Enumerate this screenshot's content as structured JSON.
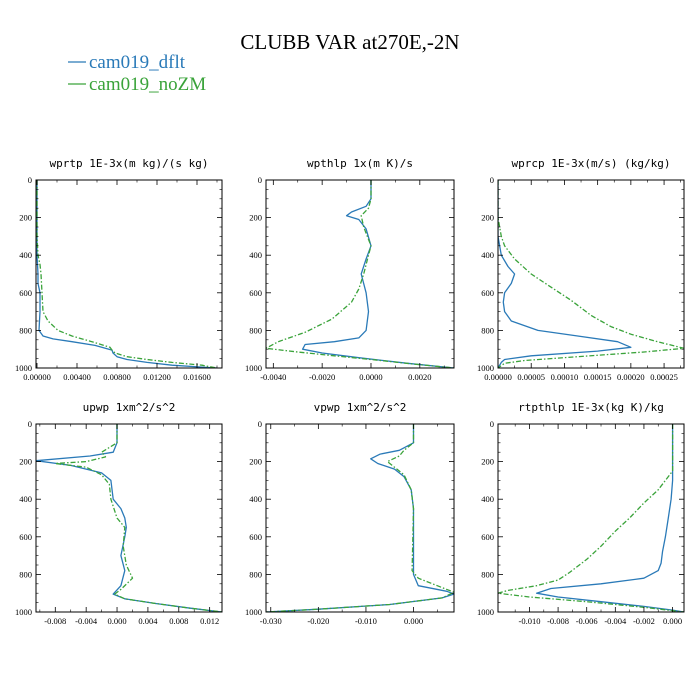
{
  "title": "CLUBB VAR at270E,-2N",
  "legend": [
    {
      "name": "cam019_dflt",
      "color": "#2a7ab8",
      "dash": "solid"
    },
    {
      "name": "cam019_noZM",
      "color": "#3aa33a",
      "dash": "dashed"
    }
  ],
  "chart_data": [
    {
      "type": "line",
      "title": "wprtp  1E-3x(m kg)/(s kg)",
      "xlim": [
        -0.0001,
        0.0185
      ],
      "ylim": [
        0,
        1000
      ],
      "y_inverted": true,
      "xticks": [
        0,
        0.004,
        0.008,
        0.012,
        0.016
      ],
      "xticklabels": [
        "0.00000",
        "0.00400",
        "0.00800",
        "0.01200",
        "0.01600"
      ],
      "yticks": [
        0,
        200,
        400,
        600,
        800,
        1000
      ],
      "series": [
        {
          "name": "cam019_dflt",
          "x": [
            0,
            0,
            0,
            0.0001,
            0.0001,
            0.0003,
            0.0003,
            0.0002,
            0.0006,
            0.0016,
            0.0035,
            0.0058,
            0.0075,
            0.0076,
            0.008,
            0.009,
            0.011,
            0.0135,
            0.0165,
            0.018
          ],
          "y": [
            0,
            300,
            400,
            500,
            550,
            600,
            700,
            800,
            830,
            845,
            860,
            880,
            905,
            920,
            940,
            955,
            970,
            985,
            995,
            1000
          ]
        },
        {
          "name": "cam019_noZM",
          "x": [
            0,
            0,
            0.0001,
            0.0003,
            0.0004,
            0.0005,
            0.0006,
            0.0011,
            0.0021,
            0.0035,
            0.0055,
            0.0073,
            0.0075,
            0.0078,
            0.009,
            0.011,
            0.0135,
            0.0165,
            0.018
          ],
          "y": [
            0,
            300,
            400,
            450,
            500,
            600,
            700,
            750,
            800,
            830,
            860,
            890,
            905,
            920,
            940,
            955,
            970,
            985,
            1000
          ]
        }
      ]
    },
    {
      "type": "line",
      "title": "wpthlp  1x(m K)/s",
      "xlim": [
        -0.0043,
        0.0034
      ],
      "ylim": [
        0,
        1000
      ],
      "y_inverted": true,
      "xticks": [
        -0.004,
        -0.002,
        0,
        0.002
      ],
      "xticklabels": [
        "-0.0040",
        "-0.0020",
        "0.0000",
        "0.0020"
      ],
      "yticks": [
        0,
        200,
        400,
        600,
        800,
        1000
      ],
      "series": [
        {
          "name": "cam019_dflt",
          "x": [
            0,
            0,
            -0.0002,
            -0.0008,
            -0.001,
            -0.0005,
            -0.0002,
            0,
            -0.0002,
            -0.0004,
            -0.0002,
            -0.0001,
            -0.0002,
            -0.0005,
            -0.0015,
            -0.0027,
            -0.0028,
            -0.002,
            -0.0005,
            0.0015,
            0.0034
          ],
          "y": [
            0,
            100,
            140,
            170,
            190,
            210,
            260,
            350,
            420,
            500,
            600,
            700,
            800,
            840,
            860,
            875,
            900,
            920,
            945,
            975,
            1000
          ]
        },
        {
          "name": "cam019_noZM",
          "x": [
            0,
            0,
            -0.0001,
            -0.0004,
            -0.0003,
            0,
            -0.0001,
            -0.0003,
            -0.0005,
            -0.0008,
            -0.0016,
            -0.0027,
            -0.0038,
            -0.0043,
            -0.003,
            -0.0015,
            0,
            0.0018,
            0.0034
          ],
          "y": [
            0,
            100,
            150,
            190,
            250,
            350,
            400,
            500,
            580,
            650,
            740,
            810,
            860,
            895,
            915,
            935,
            955,
            980,
            1000
          ]
        }
      ]
    },
    {
      "type": "line",
      "title": "wprcp  1E-3x(m/s) (kg/kg)",
      "xlim": [
        0,
        0.00028
      ],
      "ylim": [
        0,
        1000
      ],
      "y_inverted": true,
      "xticks": [
        0,
        5e-05,
        0.0001,
        0.00015,
        0.0002,
        0.00025
      ],
      "xticklabels": [
        "0.00000",
        "0.00005",
        "0.00010",
        "0.00015",
        "0.00020",
        "0.00025"
      ],
      "yticks": [
        0,
        200,
        400,
        600,
        800,
        1000
      ],
      "series": [
        {
          "name": "cam019_dflt",
          "x": [
            0,
            0,
            5e-06,
            1.5e-05,
            2.5e-05,
            2e-05,
            1e-05,
            8e-06,
            1e-05,
            2e-05,
            6e-05,
            0.00012,
            0.00018,
            0.0002,
            0.00015,
            5e-05,
            1e-05,
            5e-06,
            0
          ],
          "y": [
            0,
            300,
            400,
            460,
            500,
            550,
            600,
            650,
            700,
            750,
            800,
            830,
            860,
            890,
            910,
            935,
            955,
            970,
            1000
          ]
        },
        {
          "name": "cam019_noZM",
          "x": [
            0,
            0,
            5e-06,
            1e-05,
            2.5e-05,
            5e-05,
            8e-05,
            0.00011,
            0.00014,
            0.00017,
            0.0002,
            0.00024,
            0.00028,
            0.00022,
            0.00012,
            4e-05,
            1e-05,
            0
          ],
          "y": [
            0,
            200,
            300,
            350,
            420,
            500,
            570,
            640,
            720,
            780,
            820,
            860,
            895,
            915,
            940,
            960,
            975,
            1000
          ]
        }
      ]
    },
    {
      "type": "line",
      "title": "upwp  1xm^2/s^2",
      "xlim": [
        -0.0105,
        0.0136
      ],
      "ylim": [
        0,
        1000
      ],
      "y_inverted": true,
      "xticks": [
        -0.008,
        -0.004,
        0,
        0.004,
        0.008,
        0.012
      ],
      "xticklabels": [
        "-0.008",
        "-0.004",
        "0.000",
        "0.004",
        "0.008",
        "0.012"
      ],
      "yticks": [
        0,
        200,
        400,
        600,
        800,
        1000
      ],
      "series": [
        {
          "name": "cam019_dflt",
          "x": [
            0,
            0,
            -0.0005,
            -0.0035,
            -0.0105,
            -0.006,
            -0.002,
            -0.0008,
            -0.0005,
            0.0005,
            0.001,
            0.0012,
            0.001,
            0.0005,
            0.001,
            0.0005,
            -0.0005,
            0.001,
            0.005,
            0.0095,
            0.0136
          ],
          "y": [
            0,
            100,
            150,
            170,
            195,
            220,
            260,
            300,
            400,
            450,
            500,
            550,
            600,
            700,
            780,
            860,
            905,
            930,
            955,
            980,
            1000
          ]
        },
        {
          "name": "cam019_noZM",
          "x": [
            0,
            0,
            -0.002,
            -0.0015,
            -0.004,
            -0.008,
            -0.004,
            -0.002,
            -0.001,
            -0.0008,
            0,
            0.001,
            0.0008,
            0.0012,
            0.002,
            0.0005,
            -0.0003,
            0.001,
            0.005,
            0.0095,
            0.0136
          ],
          "y": [
            0,
            100,
            150,
            175,
            200,
            210,
            230,
            270,
            320,
            400,
            500,
            550,
            650,
            750,
            820,
            880,
            905,
            930,
            955,
            980,
            1000
          ]
        }
      ]
    },
    {
      "type": "line",
      "title": "vpwp  1xm^2/s^2",
      "xlim": [
        -0.031,
        0.0085
      ],
      "ylim": [
        0,
        1000
      ],
      "y_inverted": true,
      "xticks": [
        -0.03,
        -0.02,
        -0.01,
        0
      ],
      "xticklabels": [
        "-0.030",
        "-0.020",
        "-0.010",
        "0.000"
      ],
      "yticks": [
        0,
        200,
        400,
        600,
        800,
        1000
      ],
      "series": [
        {
          "name": "cam019_dflt",
          "x": [
            0,
            0,
            -0.003,
            -0.007,
            -0.009,
            -0.0075,
            -0.004,
            -0.002,
            -0.0005,
            0,
            0,
            0.001,
            0.007,
            0.0085,
            0.006,
            -0.005,
            -0.02,
            -0.031
          ],
          "y": [
            0,
            100,
            140,
            160,
            185,
            210,
            240,
            280,
            350,
            450,
            800,
            860,
            890,
            905,
            925,
            960,
            985,
            1000
          ]
        },
        {
          "name": "cam019_noZM",
          "x": [
            0,
            0,
            -0.002,
            -0.003,
            -0.0055,
            -0.004,
            -0.002,
            -0.0005,
            0,
            -0.0003,
            0.001,
            0.005,
            0.0085,
            0.006,
            -0.005,
            -0.02,
            -0.031
          ],
          "y": [
            0,
            100,
            140,
            170,
            200,
            230,
            270,
            350,
            450,
            780,
            820,
            860,
            895,
            925,
            960,
            985,
            1000
          ]
        }
      ]
    },
    {
      "type": "line",
      "title": "rtpthlp  1E-3x(kg K)/kg",
      "xlim": [
        -0.0122,
        0.0008
      ],
      "ylim": [
        0,
        1000
      ],
      "y_inverted": true,
      "xticks": [
        -0.01,
        -0.008,
        -0.006,
        -0.004,
        -0.002,
        0
      ],
      "xticklabels": [
        "-0.010",
        "-0.008",
        "-0.006",
        "-0.004",
        "-0.002",
        "0.000"
      ],
      "yticks": [
        0,
        200,
        400,
        600,
        800,
        1000
      ],
      "series": [
        {
          "name": "cam019_dflt",
          "x": [
            0,
            0,
            -0.0001,
            -0.0003,
            -0.0005,
            -0.0007,
            -0.0008,
            -0.001,
            -0.002,
            -0.005,
            -0.0085,
            -0.0095,
            -0.008,
            -0.005,
            -0.002,
            0,
            0.0008
          ],
          "y": [
            0,
            300,
            400,
            500,
            600,
            680,
            740,
            780,
            820,
            850,
            875,
            900,
            920,
            945,
            970,
            990,
            1000
          ]
        },
        {
          "name": "cam019_noZM",
          "x": [
            0,
            0,
            -0.001,
            -0.002,
            -0.003,
            -0.004,
            -0.005,
            -0.006,
            -0.0072,
            -0.008,
            -0.0095,
            -0.0115,
            -0.0122,
            -0.01,
            -0.006,
            -0.002,
            0.0008
          ],
          "y": [
            0,
            250,
            350,
            420,
            500,
            570,
            650,
            720,
            790,
            830,
            860,
            885,
            900,
            920,
            945,
            975,
            1000
          ]
        }
      ]
    }
  ]
}
